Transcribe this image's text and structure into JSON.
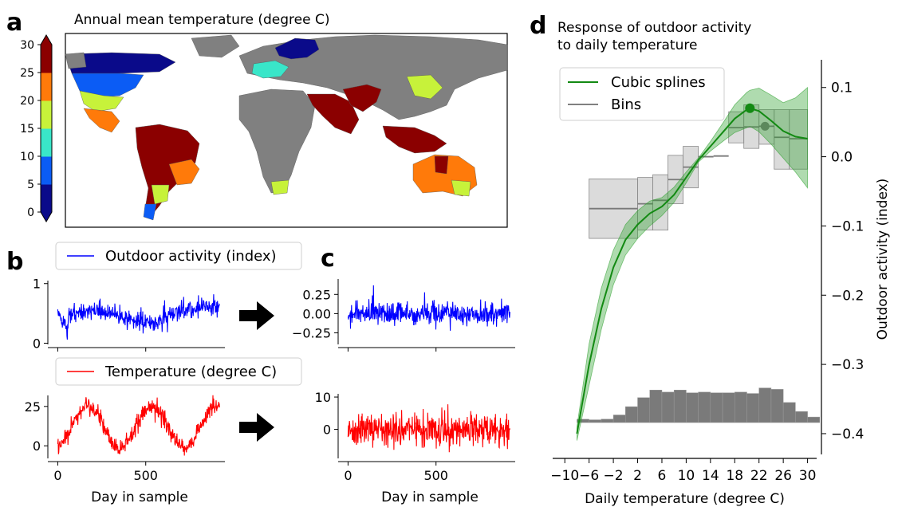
{
  "panel_labels": {
    "a": "a",
    "b": "b",
    "c": "c",
    "d": "d"
  },
  "map": {
    "title": "Annual mean temperature (degree C)",
    "colorbar_ticks": [
      "0",
      "5",
      "10",
      "15",
      "20",
      "25",
      "30"
    ],
    "colorbar_colors": [
      "#0a0a8a",
      "#0b5cf5",
      "#39e6c9",
      "#c7f23a",
      "#ff7a0a",
      "#8b0000"
    ],
    "no_data_color": "#808080"
  },
  "chart_data": [
    {
      "id": "b-activity",
      "type": "line",
      "legend": "Outdoor activity (index)",
      "color": "#0000ff",
      "x_ticks": [
        "",
        ""
      ],
      "y_ticks": [
        "0",
        "1"
      ],
      "xlim": [
        -20,
        950
      ],
      "ylim": [
        -0.02,
        1.05
      ],
      "x_range": [
        0,
        920
      ],
      "series_shape": "activity_raw"
    },
    {
      "id": "b-temperature",
      "type": "line",
      "legend": "Temperature (degree C)",
      "color": "#ff0000",
      "x_ticks": [
        "0",
        "500"
      ],
      "y_ticks": [
        "0",
        "25"
      ],
      "xlabel": "Day in sample",
      "xlim": [
        -20,
        950
      ],
      "ylim": [
        -8,
        32
      ],
      "x_range": [
        0,
        920
      ],
      "series_shape": "temp_raw"
    },
    {
      "id": "c-activity",
      "type": "line",
      "color": "#0000ff",
      "x_ticks": [
        "",
        ""
      ],
      "y_ticks": [
        "0.25",
        "0.00",
        "−0.25"
      ],
      "xlim": [
        -20,
        950
      ],
      "ylim": [
        -0.4,
        0.45
      ],
      "x_range": [
        0,
        920
      ],
      "series_shape": "activity_resid"
    },
    {
      "id": "c-temperature",
      "type": "line",
      "color": "#ff0000",
      "x_ticks": [
        "0",
        "500"
      ],
      "y_ticks": [
        "10",
        "0"
      ],
      "xlabel": "Day in sample",
      "xlim": [
        -20,
        950
      ],
      "ylim": [
        -9,
        11
      ],
      "x_range": [
        0,
        920
      ],
      "series_shape": "temp_resid"
    },
    {
      "id": "d-response",
      "type": "line",
      "title": "Response of outdoor activity\nto daily temperature",
      "xlabel": "Daily temperature (degree C)",
      "ylabel": "Outdoor activity (index)",
      "xlim": [
        -12,
        31.5
      ],
      "ylim": [
        -0.43,
        0.14
      ],
      "x_ticks": [
        "−10",
        "−6",
        "−2",
        "2",
        "6",
        "10",
        "14",
        "18",
        "22",
        "26",
        "30"
      ],
      "x_tick_values": [
        -10,
        -6,
        -2,
        2,
        6,
        10,
        14,
        18,
        22,
        26,
        30
      ],
      "y_ticks": [
        "0.1",
        "0.0",
        "−0.1",
        "−0.2",
        "−0.3",
        "−0.4"
      ],
      "y_tick_values": [
        0.1,
        0.0,
        -0.1,
        -0.2,
        -0.3,
        -0.4
      ],
      "legend": [
        "Cubic splines",
        "Bins"
      ],
      "spline": {
        "color": "#138a13",
        "x": [
          -8,
          -6,
          -4,
          -2,
          0,
          2,
          4,
          6,
          8,
          10,
          12,
          14,
          16,
          18,
          20,
          20.5,
          22,
          24,
          26,
          28,
          30
        ],
        "y": [
          -0.4,
          -0.3,
          -0.22,
          -0.16,
          -0.12,
          -0.098,
          -0.082,
          -0.072,
          -0.055,
          -0.03,
          -0.005,
          0.015,
          0.035,
          0.055,
          0.068,
          0.07,
          0.066,
          0.052,
          0.037,
          0.029,
          0.026
        ],
        "lo": [
          -0.41,
          -0.33,
          -0.25,
          -0.185,
          -0.142,
          -0.118,
          -0.1,
          -0.085,
          -0.066,
          -0.038,
          -0.008,
          0.008,
          0.022,
          0.035,
          0.042,
          0.044,
          0.036,
          0.018,
          -0.002,
          -0.022,
          -0.045
        ],
        "hi": [
          -0.39,
          -0.27,
          -0.19,
          -0.135,
          -0.098,
          -0.078,
          -0.064,
          -0.059,
          -0.044,
          -0.022,
          -0.002,
          0.022,
          0.048,
          0.075,
          0.093,
          0.096,
          0.099,
          0.089,
          0.078,
          0.085,
          0.1
        ],
        "max_point": [
          20.5,
          0.07
        ]
      },
      "bins": [
        {
          "x0": -8,
          "x1": -6,
          "y": -0.38
        },
        {
          "x0": -6,
          "x1": 2,
          "y": -0.075,
          "lo": -0.118,
          "hi": -0.032
        },
        {
          "x0": 2,
          "x1": 4.5,
          "y": -0.068,
          "lo": -0.106,
          "hi": -0.03
        },
        {
          "x0": 4.5,
          "x1": 7,
          "y": -0.063,
          "lo": -0.106,
          "hi": -0.026
        },
        {
          "x0": 7,
          "x1": 9.5,
          "y": -0.033,
          "lo": -0.068,
          "hi": 0.002
        },
        {
          "x0": 9.5,
          "x1": 12,
          "y": -0.015,
          "lo": -0.045,
          "hi": 0.015
        },
        {
          "x0": 12,
          "x1": 14.5,
          "y": 0.0
        },
        {
          "x0": 14.5,
          "x1": 17,
          "y": 0.001
        },
        {
          "x0": 17,
          "x1": 19.5,
          "y": 0.042,
          "lo": 0.02,
          "hi": 0.065
        },
        {
          "x0": 19.5,
          "x1": 22,
          "y": 0.043,
          "lo": 0.012,
          "hi": 0.075
        },
        {
          "x0": 22,
          "x1": 24.5,
          "y": 0.044,
          "lo": 0.018,
          "hi": 0.068
        },
        {
          "x0": 24.5,
          "x1": 27,
          "y": 0.028,
          "lo": -0.018,
          "hi": 0.068
        },
        {
          "x0": 27,
          "x1": 30,
          "y": 0.026,
          "lo": -0.018,
          "hi": 0.068
        }
      ],
      "bin_point": [
        23,
        0.044
      ],
      "histogram": {
        "color": "#7a7a7a",
        "edges": [
          -8,
          -6,
          -4,
          -2,
          0,
          2,
          4,
          6,
          8,
          10,
          12,
          14,
          16,
          18,
          20,
          22,
          24,
          26,
          28,
          30
        ],
        "tops": [
          -0.38,
          -0.38,
          -0.379,
          -0.373,
          -0.361,
          -0.348,
          -0.337,
          -0.34,
          -0.337,
          -0.341,
          -0.34,
          -0.341,
          -0.341,
          -0.34,
          -0.342,
          -0.334,
          -0.336,
          -0.355,
          -0.368,
          -0.376
        ]
      }
    }
  ]
}
